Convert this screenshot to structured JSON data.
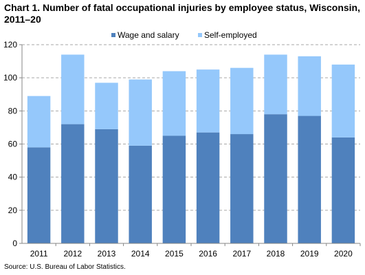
{
  "title": "Chart 1. Number of fatal occupational injuries by employee status,  Wisconsin, 2011–20",
  "source": "Source: U.S. Bureau of Labor Statistics.",
  "colors": {
    "wage": "#4f81bd",
    "self": "#95c8fb",
    "grid": "#a6a6a6",
    "axis": "#868686"
  },
  "chart_data": {
    "type": "bar",
    "stacked": true,
    "categories": [
      "2011",
      "2012",
      "2013",
      "2014",
      "2015",
      "2016",
      "2017",
      "2018",
      "2019",
      "2020"
    ],
    "series": [
      {
        "name": "Wage and salary",
        "values": [
          58,
          72,
          69,
          59,
          65,
          67,
          66,
          78,
          77,
          64
        ]
      },
      {
        "name": "Self-employed",
        "values": [
          31,
          42,
          28,
          40,
          39,
          38,
          40,
          36,
          36,
          44
        ]
      }
    ],
    "yticks": [
      "0",
      "20",
      "40",
      "60",
      "80",
      "100",
      "120"
    ],
    "ylim": [
      0,
      120
    ],
    "grid": true,
    "legend_position": "top"
  }
}
